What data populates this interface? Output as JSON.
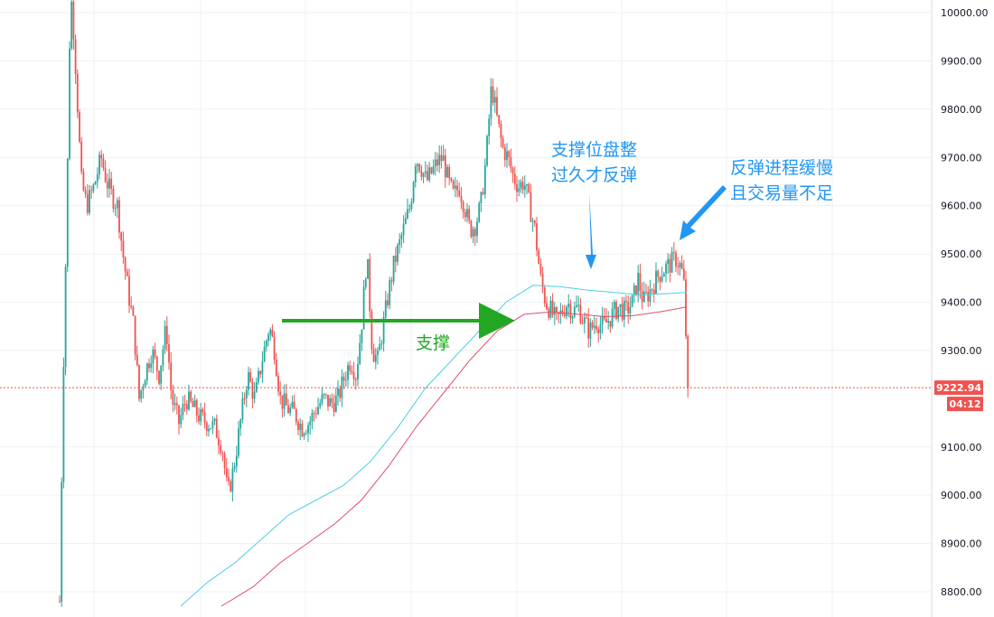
{
  "chart_data": {
    "type": "candlestick",
    "title": "",
    "xlabel": "",
    "ylabel": "",
    "ylim": [
      8770,
      10030
    ],
    "grid": true,
    "y_ticks": [
      {
        "v": 10000,
        "label": "10000.00"
      },
      {
        "v": 9900,
        "label": "9900.00"
      },
      {
        "v": 9800,
        "label": "9800.00"
      },
      {
        "v": 9700,
        "label": "9700.00"
      },
      {
        "v": 9600,
        "label": "9600.00"
      },
      {
        "v": 9500,
        "label": "9500.00"
      },
      {
        "v": 9400,
        "label": "9400.00"
      },
      {
        "v": 9300,
        "label": "9300.00"
      },
      {
        "v": 9100,
        "label": "9100.00"
      },
      {
        "v": 9000,
        "label": "9000.00"
      },
      {
        "v": 8900,
        "label": "8900.00"
      },
      {
        "v": 8800,
        "label": "8800.00"
      }
    ],
    "current_price": {
      "value": 9222.94,
      "label": "9222.94",
      "countdown": "04:12"
    },
    "colors": {
      "up": "#26a69a",
      "down": "#ef5350",
      "ma_fast": "#4dd0e1",
      "ma_slow": "#e0506a",
      "grid": "#eef0f3",
      "support_arrow": "#22a822",
      "annotation_blue": "#2196f3"
    },
    "price_path": [
      [
        66,
        8780
      ],
      [
        70,
        9250
      ],
      [
        74,
        9600
      ],
      [
        78,
        10050
      ],
      [
        82,
        9950
      ],
      [
        86,
        9800
      ],
      [
        90,
        9650
      ],
      [
        96,
        9600
      ],
      [
        104,
        9640
      ],
      [
        112,
        9700
      ],
      [
        118,
        9650
      ],
      [
        124,
        9620
      ],
      [
        130,
        9600
      ],
      [
        136,
        9500
      ],
      [
        142,
        9420
      ],
      [
        148,
        9350
      ],
      [
        154,
        9200
      ],
      [
        160,
        9250
      ],
      [
        168,
        9300
      ],
      [
        176,
        9250
      ],
      [
        184,
        9350
      ],
      [
        190,
        9200
      ],
      [
        198,
        9150
      ],
      [
        206,
        9200
      ],
      [
        214,
        9180
      ],
      [
        222,
        9160
      ],
      [
        230,
        9150
      ],
      [
        238,
        9140
      ],
      [
        246,
        9100
      ],
      [
        252,
        9000
      ],
      [
        258,
        9050
      ],
      [
        266,
        9150
      ],
      [
        274,
        9250
      ],
      [
        282,
        9200
      ],
      [
        290,
        9280
      ],
      [
        298,
        9350
      ],
      [
        304,
        9300
      ],
      [
        310,
        9200
      ],
      [
        318,
        9180
      ],
      [
        326,
        9170
      ],
      [
        334,
        9140
      ],
      [
        342,
        9150
      ],
      [
        350,
        9180
      ],
      [
        358,
        9200
      ],
      [
        366,
        9190
      ],
      [
        374,
        9200
      ],
      [
        382,
        9250
      ],
      [
        388,
        9280
      ],
      [
        394,
        9250
      ],
      [
        400,
        9350
      ],
      [
        406,
        9500
      ],
      [
        412,
        9300
      ],
      [
        418,
        9280
      ],
      [
        424,
        9350
      ],
      [
        430,
        9420
      ],
      [
        436,
        9480
      ],
      [
        442,
        9520
      ],
      [
        448,
        9560
      ],
      [
        454,
        9600
      ],
      [
        460,
        9700
      ],
      [
        466,
        9680
      ],
      [
        472,
        9650
      ],
      [
        478,
        9670
      ],
      [
        484,
        9690
      ],
      [
        490,
        9700
      ],
      [
        496,
        9650
      ],
      [
        502,
        9620
      ],
      [
        508,
        9640
      ],
      [
        514,
        9600
      ],
      [
        520,
        9550
      ],
      [
        526,
        9560
      ],
      [
        532,
        9600
      ],
      [
        538,
        9700
      ],
      [
        544,
        9850
      ],
      [
        550,
        9780
      ],
      [
        556,
        9720
      ],
      [
        562,
        9700
      ],
      [
        568,
        9660
      ],
      [
        574,
        9640
      ],
      [
        580,
        9650
      ],
      [
        586,
        9600
      ],
      [
        592,
        9550
      ],
      [
        598,
        9450
      ],
      [
        604,
        9400
      ],
      [
        610,
        9380
      ],
      [
        616,
        9360
      ],
      [
        622,
        9380
      ],
      [
        628,
        9400
      ],
      [
        634,
        9380
      ],
      [
        640,
        9390
      ],
      [
        646,
        9360
      ],
      [
        652,
        9340
      ],
      [
        660,
        9360
      ],
      [
        668,
        9350
      ],
      [
        676,
        9370
      ],
      [
        684,
        9390
      ],
      [
        692,
        9380
      ],
      [
        700,
        9400
      ],
      [
        706,
        9450
      ],
      [
        712,
        9400
      ],
      [
        718,
        9420
      ],
      [
        724,
        9440
      ],
      [
        730,
        9460
      ],
      [
        736,
        9470
      ],
      [
        742,
        9480
      ],
      [
        748,
        9490
      ],
      [
        754,
        9470
      ],
      [
        758,
        9420
      ],
      [
        760,
        9250
      ],
      [
        763,
        9222.94
      ]
    ],
    "ma_fast": [
      [
        200,
        8770
      ],
      [
        230,
        8820
      ],
      [
        260,
        8860
      ],
      [
        290,
        8910
      ],
      [
        320,
        8960
      ],
      [
        350,
        8990
      ],
      [
        380,
        9020
      ],
      [
        410,
        9070
      ],
      [
        440,
        9140
      ],
      [
        470,
        9220
      ],
      [
        500,
        9280
      ],
      [
        530,
        9340
      ],
      [
        560,
        9400
      ],
      [
        590,
        9435
      ],
      [
        620,
        9432
      ],
      [
        650,
        9425
      ],
      [
        680,
        9420
      ],
      [
        710,
        9415
      ],
      [
        740,
        9418
      ],
      [
        760,
        9420
      ]
    ],
    "ma_slow": [
      [
        245,
        8770
      ],
      [
        280,
        8810
      ],
      [
        310,
        8860
      ],
      [
        340,
        8900
      ],
      [
        370,
        8940
      ],
      [
        400,
        8990
      ],
      [
        430,
        9060
      ],
      [
        460,
        9140
      ],
      [
        490,
        9210
      ],
      [
        520,
        9280
      ],
      [
        550,
        9340
      ],
      [
        580,
        9375
      ],
      [
        610,
        9380
      ],
      [
        640,
        9375
      ],
      [
        670,
        9370
      ],
      [
        700,
        9372
      ],
      [
        730,
        9380
      ],
      [
        760,
        9390
      ]
    ],
    "annotations": [
      {
        "lines": [
          "支撑"
        ],
        "color": "#22a822"
      },
      {
        "lines": [
          "支撑位盘整",
          "过久才反弹"
        ],
        "color": "#2196f3"
      },
      {
        "lines": [
          "反弹进程缓慢",
          "且交易量不足"
        ],
        "color": "#2196f3"
      }
    ]
  }
}
